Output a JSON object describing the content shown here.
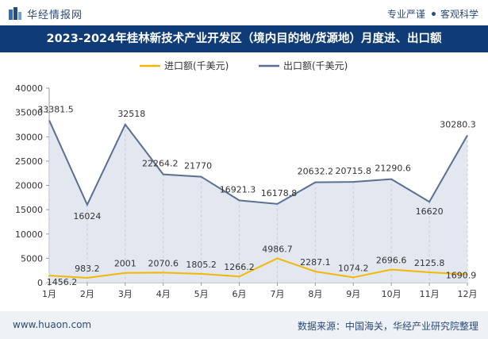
{
  "header": {
    "brand": "华经情报网",
    "tagline_left": "专业严谨",
    "tagline_right": "客观科学"
  },
  "title": "2023-2024年桂林新技术产业开发区（境内目的地/货源地）月度进、出口额",
  "footer": {
    "url": "www.huaon.com",
    "source": "数据来源：中国海关，华经产业研究院整理"
  },
  "colors": {
    "import": "#f5b800",
    "export": "#5a6f91",
    "area": "#dfe4ee",
    "title_bg": "#0f3c77"
  },
  "chart_data": {
    "type": "line",
    "categories": [
      "1月",
      "2月",
      "3月",
      "4月",
      "5月",
      "6月",
      "7月",
      "8月",
      "9月",
      "10月",
      "11月",
      "12月"
    ],
    "series": [
      {
        "name": "进口额(千美元)",
        "values": [
          1456.2,
          983.2,
          2001,
          2070.6,
          1805.2,
          1266.2,
          4986.7,
          2287.1,
          1074.2,
          2696.6,
          2125.8,
          1690.9
        ]
      },
      {
        "name": "出口额(千美元)",
        "values": [
          33381.5,
          16024,
          32518,
          22264.2,
          21770,
          16921.3,
          16178.8,
          20632.2,
          20715.8,
          21290.6,
          16620,
          30280.3
        ],
        "fill": "area"
      }
    ],
    "ylim": [
      0,
      40000
    ],
    "yticks": [
      0,
      5000,
      10000,
      15000,
      20000,
      25000,
      30000,
      35000,
      40000
    ],
    "legend": "top-center",
    "grid": false
  }
}
